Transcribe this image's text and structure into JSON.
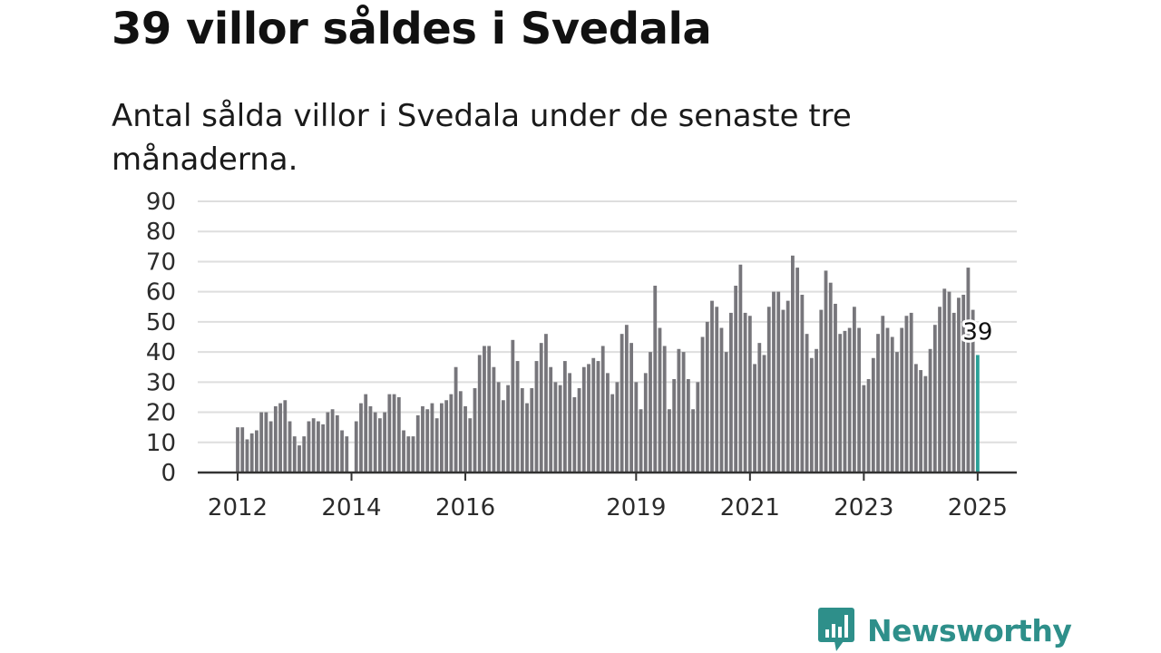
{
  "title": "39 villor såldes i Svedala",
  "subtitle": "Antal sålda villor i Svedala under de senaste tre månaderna.",
  "brand": {
    "name": "Newsworthy",
    "color": "#2e8f8a"
  },
  "colors": {
    "bar": "#77767b",
    "highlight": "#2aa198",
    "grid": "#dedede",
    "axis": "#333333"
  },
  "chart_data": {
    "type": "bar",
    "y_ticks": [
      0,
      10,
      20,
      30,
      40,
      50,
      60,
      70,
      80,
      90
    ],
    "ylim": [
      0,
      90
    ],
    "x_ticks": [
      {
        "label": "2012",
        "index": 0
      },
      {
        "label": "2014",
        "index": 24
      },
      {
        "label": "2016",
        "index": 48
      },
      {
        "label": "2019",
        "index": 84
      },
      {
        "label": "2021",
        "index": 108
      },
      {
        "label": "2023",
        "index": 132
      },
      {
        "label": "2025",
        "index": 156
      }
    ],
    "grid": true,
    "highlight": {
      "index": 156,
      "value": 39,
      "label": "39"
    },
    "values": [
      15,
      15,
      11,
      13,
      14,
      20,
      20,
      17,
      22,
      23,
      24,
      17,
      12,
      9,
      12,
      17,
      18,
      17,
      16,
      20,
      21,
      19,
      14,
      12,
      0,
      17,
      23,
      26,
      22,
      20,
      18,
      20,
      26,
      26,
      25,
      14,
      12,
      12,
      19,
      22,
      21,
      23,
      18,
      23,
      24,
      26,
      35,
      27,
      22,
      18,
      28,
      39,
      42,
      42,
      35,
      30,
      24,
      29,
      44,
      37,
      28,
      23,
      28,
      37,
      43,
      46,
      35,
      30,
      29,
      37,
      33,
      25,
      28,
      35,
      36,
      38,
      37,
      42,
      33,
      26,
      30,
      46,
      49,
      43,
      30,
      21,
      33,
      40,
      62,
      48,
      42,
      21,
      31,
      41,
      40,
      31,
      21,
      30,
      45,
      50,
      57,
      55,
      48,
      40,
      53,
      62,
      69,
      53,
      52,
      36,
      43,
      39,
      55,
      60,
      60,
      54,
      57,
      72,
      68,
      59,
      46,
      38,
      41,
      54,
      67,
      63,
      56,
      46,
      47,
      48,
      55,
      48,
      29,
      31,
      38,
      46,
      52,
      48,
      45,
      40,
      48,
      52,
      53,
      36,
      34,
      32,
      41,
      49,
      55,
      61,
      60,
      53,
      58,
      59,
      68,
      54,
      39
    ]
  }
}
